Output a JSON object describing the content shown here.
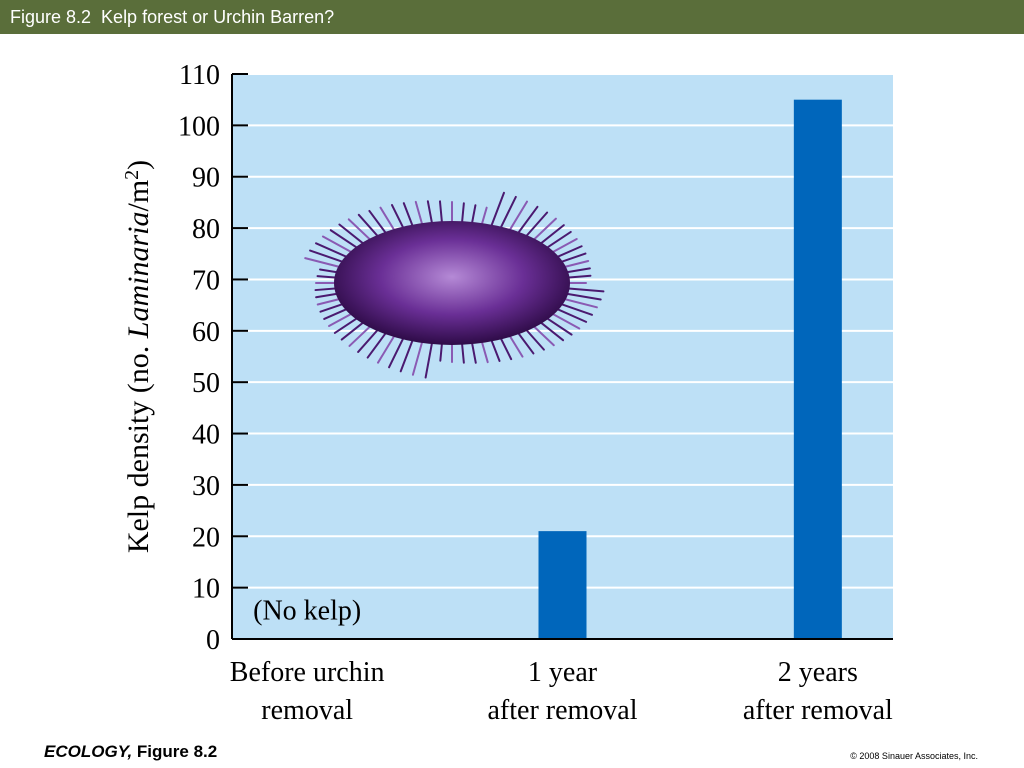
{
  "slide": {
    "title": "Figure 8.2  Kelp forest or Urchin Barren?",
    "footer_book": "ECOLOGY,",
    "footer_figure": " Figure 8.2",
    "copyright": "© 2008 Sinauer Associates, Inc."
  },
  "chart_data": {
    "type": "bar",
    "ylabel_prefix": "Kelp density (no. ",
    "ylabel_italic": "Laminaria",
    "ylabel_suffix": "/m",
    "ylabel_sup": "2",
    "ylabel_close": ")",
    "ylim": [
      0,
      110
    ],
    "yticks": [
      0,
      10,
      20,
      30,
      40,
      50,
      60,
      70,
      80,
      90,
      100,
      110
    ],
    "grid": true,
    "categories": [
      {
        "line1": "Before urchin",
        "line2": "removal"
      },
      {
        "line1": "1 year",
        "line2": "after removal"
      },
      {
        "line1": "2 years",
        "line2": "after removal"
      }
    ],
    "values": [
      0,
      21,
      105
    ],
    "annotation": "(No kelp)",
    "colors": {
      "plot_bg": "#bde0f6",
      "bar": "#0066bb",
      "grid": "#ffffff",
      "title_bar": "#5a6e3a"
    }
  }
}
